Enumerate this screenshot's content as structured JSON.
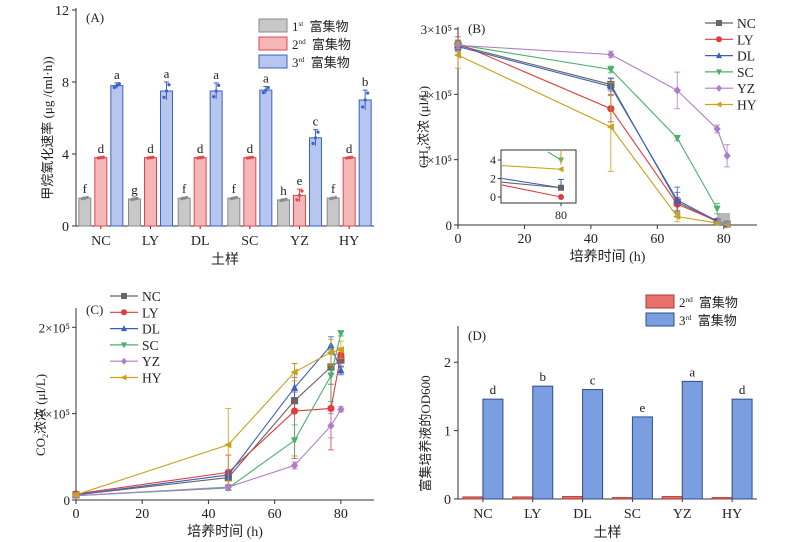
{
  "chart_data": [
    {
      "panel": "(A)",
      "type": "bar",
      "xlabel": "土样",
      "ylabel": "甲烷氧化速率 (μg /(ml·h))",
      "ylim": [
        0,
        12
      ],
      "yticks": [
        0,
        4,
        8,
        12
      ],
      "categories": [
        "NC",
        "LY",
        "DL",
        "SC",
        "YZ",
        "HY"
      ],
      "legend_position": "top-right",
      "series": [
        {
          "name": "1st 富集物",
          "sup_num": "1",
          "sup": "st",
          "suffix": "富集物",
          "color": "#c8c8c8",
          "stroke": "#8a8a8a",
          "values": [
            1.55,
            1.5,
            1.55,
            1.55,
            1.45,
            1.55
          ],
          "errors": [
            0.05,
            0.05,
            0.05,
            0.05,
            0.05,
            0.05
          ],
          "letters": [
            "f",
            "g",
            "f",
            "f",
            "h",
            "f"
          ]
        },
        {
          "name": "2nd 富集物",
          "sup_num": "2",
          "sup": "nd",
          "suffix": "富集物",
          "color": "#f4b6b6",
          "stroke": "#e0474c",
          "values": [
            3.8,
            3.8,
            3.8,
            3.8,
            1.7,
            3.8
          ],
          "errors": [
            0.03,
            0.03,
            0.03,
            0.03,
            0.35,
            0.03
          ],
          "letters": [
            "d",
            "d",
            "d",
            "d",
            "e",
            "d"
          ]
        },
        {
          "name": "3rd 富集物",
          "sup_num": "3",
          "sup": "rd",
          "suffix": "富集物",
          "color": "#b6c6ee",
          "stroke": "#3b62c4",
          "values": [
            7.8,
            7.5,
            7.5,
            7.55,
            4.9,
            7.0
          ],
          "errors": [
            0.15,
            0.5,
            0.45,
            0.2,
            0.45,
            0.55
          ],
          "letters": [
            "a",
            "a",
            "a",
            "a",
            "c",
            "b"
          ]
        }
      ]
    },
    {
      "panel": "(B)",
      "type": "line",
      "xlabel": "培养时间 (h)",
      "ylabel": "CH4浓浓 (μl/L)",
      "xlim": [
        0,
        90
      ],
      "xticks": [
        0,
        20,
        40,
        60,
        80
      ],
      "ylim": [
        0,
        300000
      ],
      "yticks": [
        {
          "v": 0,
          "label": "0"
        },
        {
          "v": 100000,
          "label": "1×10⁵"
        },
        {
          "v": 200000,
          "label": "2×10⁵"
        },
        {
          "v": 300000,
          "label": "3×10⁵"
        }
      ],
      "legend_position": "top-right",
      "series": [
        {
          "name": "NC",
          "color": "#666666",
          "marker": "square",
          "x": [
            0,
            46,
            66,
            78,
            81
          ],
          "y": [
            275000,
            215000,
            35000,
            5000,
            1500
          ],
          "err": [
            8000,
            10000,
            15000,
            3000,
            1000
          ]
        },
        {
          "name": "LY",
          "color": "#e03c3c",
          "marker": "circle",
          "x": [
            0,
            46,
            66,
            78
          ],
          "y": [
            278000,
            178000,
            32000,
            6000
          ],
          "err": [
            10000,
            20000,
            10000,
            2000
          ]
        },
        {
          "name": "DL",
          "color": "#3a5fc0",
          "marker": "triangle-up",
          "x": [
            0,
            46,
            66,
            78,
            81
          ],
          "y": [
            273000,
            212000,
            38000,
            6000,
            1000
          ],
          "err": [
            8000,
            12000,
            20000,
            3000,
            1000
          ]
        },
        {
          "name": "SC",
          "color": "#4caf6a",
          "marker": "triangle-down",
          "x": [
            0,
            46,
            66,
            78
          ],
          "y": [
            276000,
            238000,
            133000,
            25000
          ],
          "err": [
            6000,
            5000,
            4000,
            8000
          ]
        },
        {
          "name": "YZ",
          "color": "#b07cc6",
          "marker": "diamond",
          "x": [
            0,
            46,
            66,
            78,
            81
          ],
          "y": [
            275000,
            261000,
            206000,
            147000,
            106000
          ],
          "err": [
            5000,
            5000,
            28000,
            6000,
            17000
          ]
        },
        {
          "name": "HY",
          "color": "#c9a21a",
          "marker": "triangle-left",
          "x": [
            0,
            46,
            66,
            78,
            81
          ],
          "y": [
            260000,
            150000,
            13000,
            3000,
            500
          ],
          "err": [
            20000,
            68000,
            8000,
            2000,
            500
          ]
        }
      ],
      "inset": {
        "yticks": [
          "0",
          "2",
          "4"
        ],
        "xtick": "80",
        "note": "zoom of values near 80 h (×10³ scale)"
      }
    },
    {
      "panel": "(C)",
      "type": "line",
      "xlabel": "培养时间 (h)",
      "ylabel": "CO2浓浓 (μl/L)",
      "xlim": [
        0,
        90
      ],
      "xticks": [
        0,
        20,
        40,
        60,
        80
      ],
      "ylim": [
        0,
        220000
      ],
      "yticks": [
        {
          "v": 0,
          "label": "0"
        },
        {
          "v": 100000,
          "label": "1×10⁵"
        },
        {
          "v": 200000,
          "label": "2×10⁵"
        }
      ],
      "legend_position": "top-left",
      "series": [
        {
          "name": "NC",
          "color": "#666666",
          "marker": "square",
          "x": [
            0,
            46,
            66,
            77,
            80
          ],
          "y": [
            6000,
            26000,
            115000,
            154000,
            162000
          ],
          "err": [
            1500,
            4000,
            10000,
            20000,
            8000
          ]
        },
        {
          "name": "LY",
          "color": "#e03c3c",
          "marker": "circle",
          "x": [
            0,
            46,
            66,
            77,
            80
          ],
          "y": [
            7000,
            32000,
            103000,
            106000,
            168000
          ],
          "err": [
            1500,
            20000,
            55000,
            48000,
            8000
          ]
        },
        {
          "name": "DL",
          "color": "#3a5fc0",
          "marker": "triangle-up",
          "x": [
            0,
            46,
            66,
            77,
            80
          ],
          "y": [
            6000,
            29000,
            130000,
            179000,
            150000
          ],
          "err": [
            1500,
            4000,
            12000,
            10000,
            5000
          ]
        },
        {
          "name": "SC",
          "color": "#4caf6a",
          "marker": "triangle-down",
          "x": [
            0,
            46,
            66,
            77,
            80
          ],
          "y": [
            5000,
            14000,
            69000,
            144000,
            193000
          ],
          "err": [
            1500,
            3000,
            18000,
            30000,
            3000
          ]
        },
        {
          "name": "YZ",
          "color": "#b07cc6",
          "marker": "diamond",
          "x": [
            0,
            46,
            66,
            77,
            80
          ],
          "y": [
            5000,
            15000,
            40000,
            86000,
            105000
          ],
          "err": [
            1500,
            3000,
            4000,
            14000,
            3000
          ]
        },
        {
          "name": "HY",
          "color": "#c9a21a",
          "marker": "triangle-left",
          "x": [
            0,
            46,
            66,
            77,
            80
          ],
          "y": [
            6000,
            64000,
            148000,
            171000,
            174000
          ],
          "err": [
            1500,
            42000,
            10000,
            15000,
            10000
          ]
        }
      ]
    },
    {
      "panel": "(D)",
      "type": "bar",
      "xlabel": "土样",
      "ylabel": "富集培养液的OD600",
      "ylim": [
        0,
        2.5
      ],
      "yticks": [
        0,
        1,
        2
      ],
      "categories": [
        "NC",
        "LY",
        "DL",
        "SC",
        "YZ",
        "HY"
      ],
      "legend_position": "top-right",
      "series": [
        {
          "name": "2nd 富集物",
          "sup_num": "2",
          "sup": "nd",
          "suffix": "富集物",
          "color": "#e8706a",
          "stroke": "#b03a35",
          "values": [
            0.03,
            0.03,
            0.035,
            0.02,
            0.035,
            0.02
          ],
          "letters": [
            "",
            "",
            "",
            "",
            "",
            ""
          ]
        },
        {
          "name": "3rd 富集物",
          "sup_num": "3",
          "sup": "rd",
          "suffix": "富集物",
          "color": "#7a9ee0",
          "stroke": "#2f4c8f",
          "values": [
            1.46,
            1.65,
            1.6,
            1.2,
            1.72,
            1.46
          ],
          "letters": [
            "d",
            "b",
            "c",
            "e",
            "a",
            "d"
          ]
        }
      ]
    }
  ]
}
